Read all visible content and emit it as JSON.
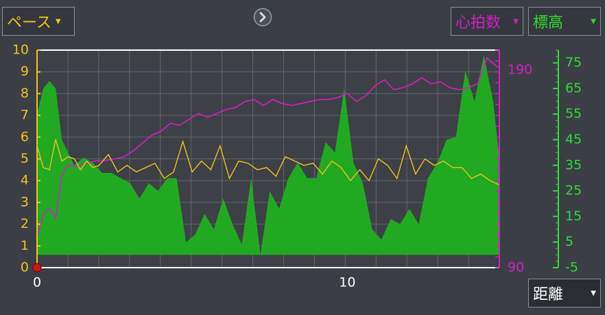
{
  "controls": {
    "pace_select": "ペース",
    "hr_select": "心拍数",
    "elev_select": "標高",
    "x_select": "距離",
    "arrow_glyph": "▼"
  },
  "colors": {
    "background": "#3b3f45",
    "plot_bg": "#3d4046",
    "grid": "#62666c",
    "pace": "#f2c21b",
    "heart_rate": "#d21fc4",
    "elevation_fill": "#22a922",
    "elevation_axis": "#2fdc2f",
    "frame": "#ffffff"
  },
  "chart_data": [
    {
      "type": "line",
      "series_key": "pace",
      "x": [
        0,
        0.2,
        0.4,
        0.6,
        0.8,
        1.0,
        1.2,
        1.4,
        1.6,
        1.8,
        2.0,
        2.3,
        2.6,
        2.9,
        3.2,
        3.5,
        3.8,
        4.1,
        4.4,
        4.7,
        5.0,
        5.3,
        5.6,
        5.9,
        6.2,
        6.5,
        6.8,
        7.1,
        7.4,
        7.7,
        8.0,
        8.3,
        8.6,
        8.9,
        9.2,
        9.5,
        9.8,
        10.1,
        10.4,
        10.7,
        11.0,
        11.3,
        11.6,
        11.9,
        12.2,
        12.5,
        12.8,
        13.1,
        13.4,
        13.7,
        14.0,
        14.3,
        14.6,
        14.9
      ],
      "y": [
        5.6,
        4.6,
        4.5,
        5.9,
        4.9,
        5.1,
        5.0,
        4.5,
        4.9,
        4.6,
        4.7,
        5.2,
        4.4,
        4.7,
        4.4,
        4.6,
        4.8,
        4.1,
        4.4,
        5.8,
        4.4,
        4.9,
        4.5,
        5.6,
        4.1,
        4.9,
        4.8,
        4.5,
        4.6,
        4.2,
        5.1,
        4.9,
        4.7,
        4.8,
        4.3,
        4.9,
        4.6,
        4.0,
        4.5,
        4.0,
        5.0,
        4.7,
        4.1,
        5.6,
        4.3,
        5.0,
        4.7,
        4.9,
        4.6,
        4.6,
        4.1,
        4.3,
        4.0,
        3.8
      ],
      "ylim": [
        0,
        10
      ],
      "yticks": [
        0,
        1,
        2,
        3,
        4,
        5,
        6,
        7,
        8,
        9,
        10
      ],
      "axis_side": "left"
    },
    {
      "type": "line",
      "series_key": "heart_rate",
      "x": [
        0,
        0.2,
        0.4,
        0.6,
        0.8,
        1.0,
        1.3,
        1.6,
        1.9,
        2.2,
        2.5,
        2.8,
        3.1,
        3.4,
        3.7,
        4.0,
        4.3,
        4.6,
        4.9,
        5.2,
        5.5,
        5.8,
        6.1,
        6.4,
        6.7,
        7.0,
        7.3,
        7.6,
        7.9,
        8.2,
        8.5,
        8.8,
        9.1,
        9.4,
        9.7,
        10.0,
        10.3,
        10.6,
        10.9,
        11.2,
        11.5,
        11.8,
        12.1,
        12.4,
        12.7,
        13.0,
        13.3,
        13.6,
        13.9,
        14.2,
        14.5,
        14.8,
        14.9
      ],
      "y": [
        105,
        117,
        120,
        115,
        137,
        142,
        141,
        143,
        144,
        144,
        145,
        146,
        149,
        153,
        157,
        159,
        163,
        162,
        165,
        168,
        166,
        168,
        170,
        171,
        174,
        175,
        172,
        175,
        173,
        172,
        173,
        174,
        175,
        175,
        176,
        178,
        174,
        177,
        182,
        185,
        180,
        181,
        183,
        186,
        183,
        184,
        181,
        180,
        181,
        183,
        196,
        192,
        191
      ],
      "ylim": [
        90,
        200
      ],
      "yticks": [
        90,
        190
      ],
      "axis_side": "right"
    },
    {
      "type": "area",
      "series_key": "elevation",
      "x": [
        0,
        0.2,
        0.4,
        0.6,
        0.8,
        1.0,
        1.2,
        1.5,
        1.8,
        2.1,
        2.4,
        2.7,
        3.0,
        3.3,
        3.6,
        3.9,
        4.2,
        4.5,
        4.8,
        5.1,
        5.4,
        5.7,
        6.0,
        6.3,
        6.6,
        6.9,
        7.2,
        7.5,
        7.8,
        8.1,
        8.4,
        8.7,
        9.0,
        9.3,
        9.6,
        9.9,
        10.2,
        10.5,
        10.8,
        11.1,
        11.4,
        11.7,
        12.0,
        12.3,
        12.6,
        12.9,
        13.2,
        13.5,
        13.8,
        14.1,
        14.4,
        14.7,
        14.9
      ],
      "y": [
        55,
        65,
        68,
        65,
        45,
        40,
        35,
        38,
        36,
        32,
        32,
        30,
        28,
        22,
        28,
        25,
        30,
        30,
        5,
        8,
        16,
        10,
        22,
        12,
        4,
        30,
        0,
        25,
        18,
        30,
        36,
        30,
        30,
        44,
        40,
        65,
        36,
        28,
        10,
        6,
        14,
        12,
        18,
        12,
        30,
        36,
        45,
        46,
        72,
        60,
        78,
        60,
        38
      ],
      "ylim": [
        -5,
        80
      ],
      "yticks": [
        -5,
        5,
        15,
        25,
        35,
        45,
        55,
        65,
        75
      ],
      "axis_side": "right-outer"
    },
    {
      "type": "axis",
      "series_key": "distance",
      "xlim": [
        0,
        14.9
      ],
      "xticks": [
        0,
        10
      ]
    }
  ]
}
